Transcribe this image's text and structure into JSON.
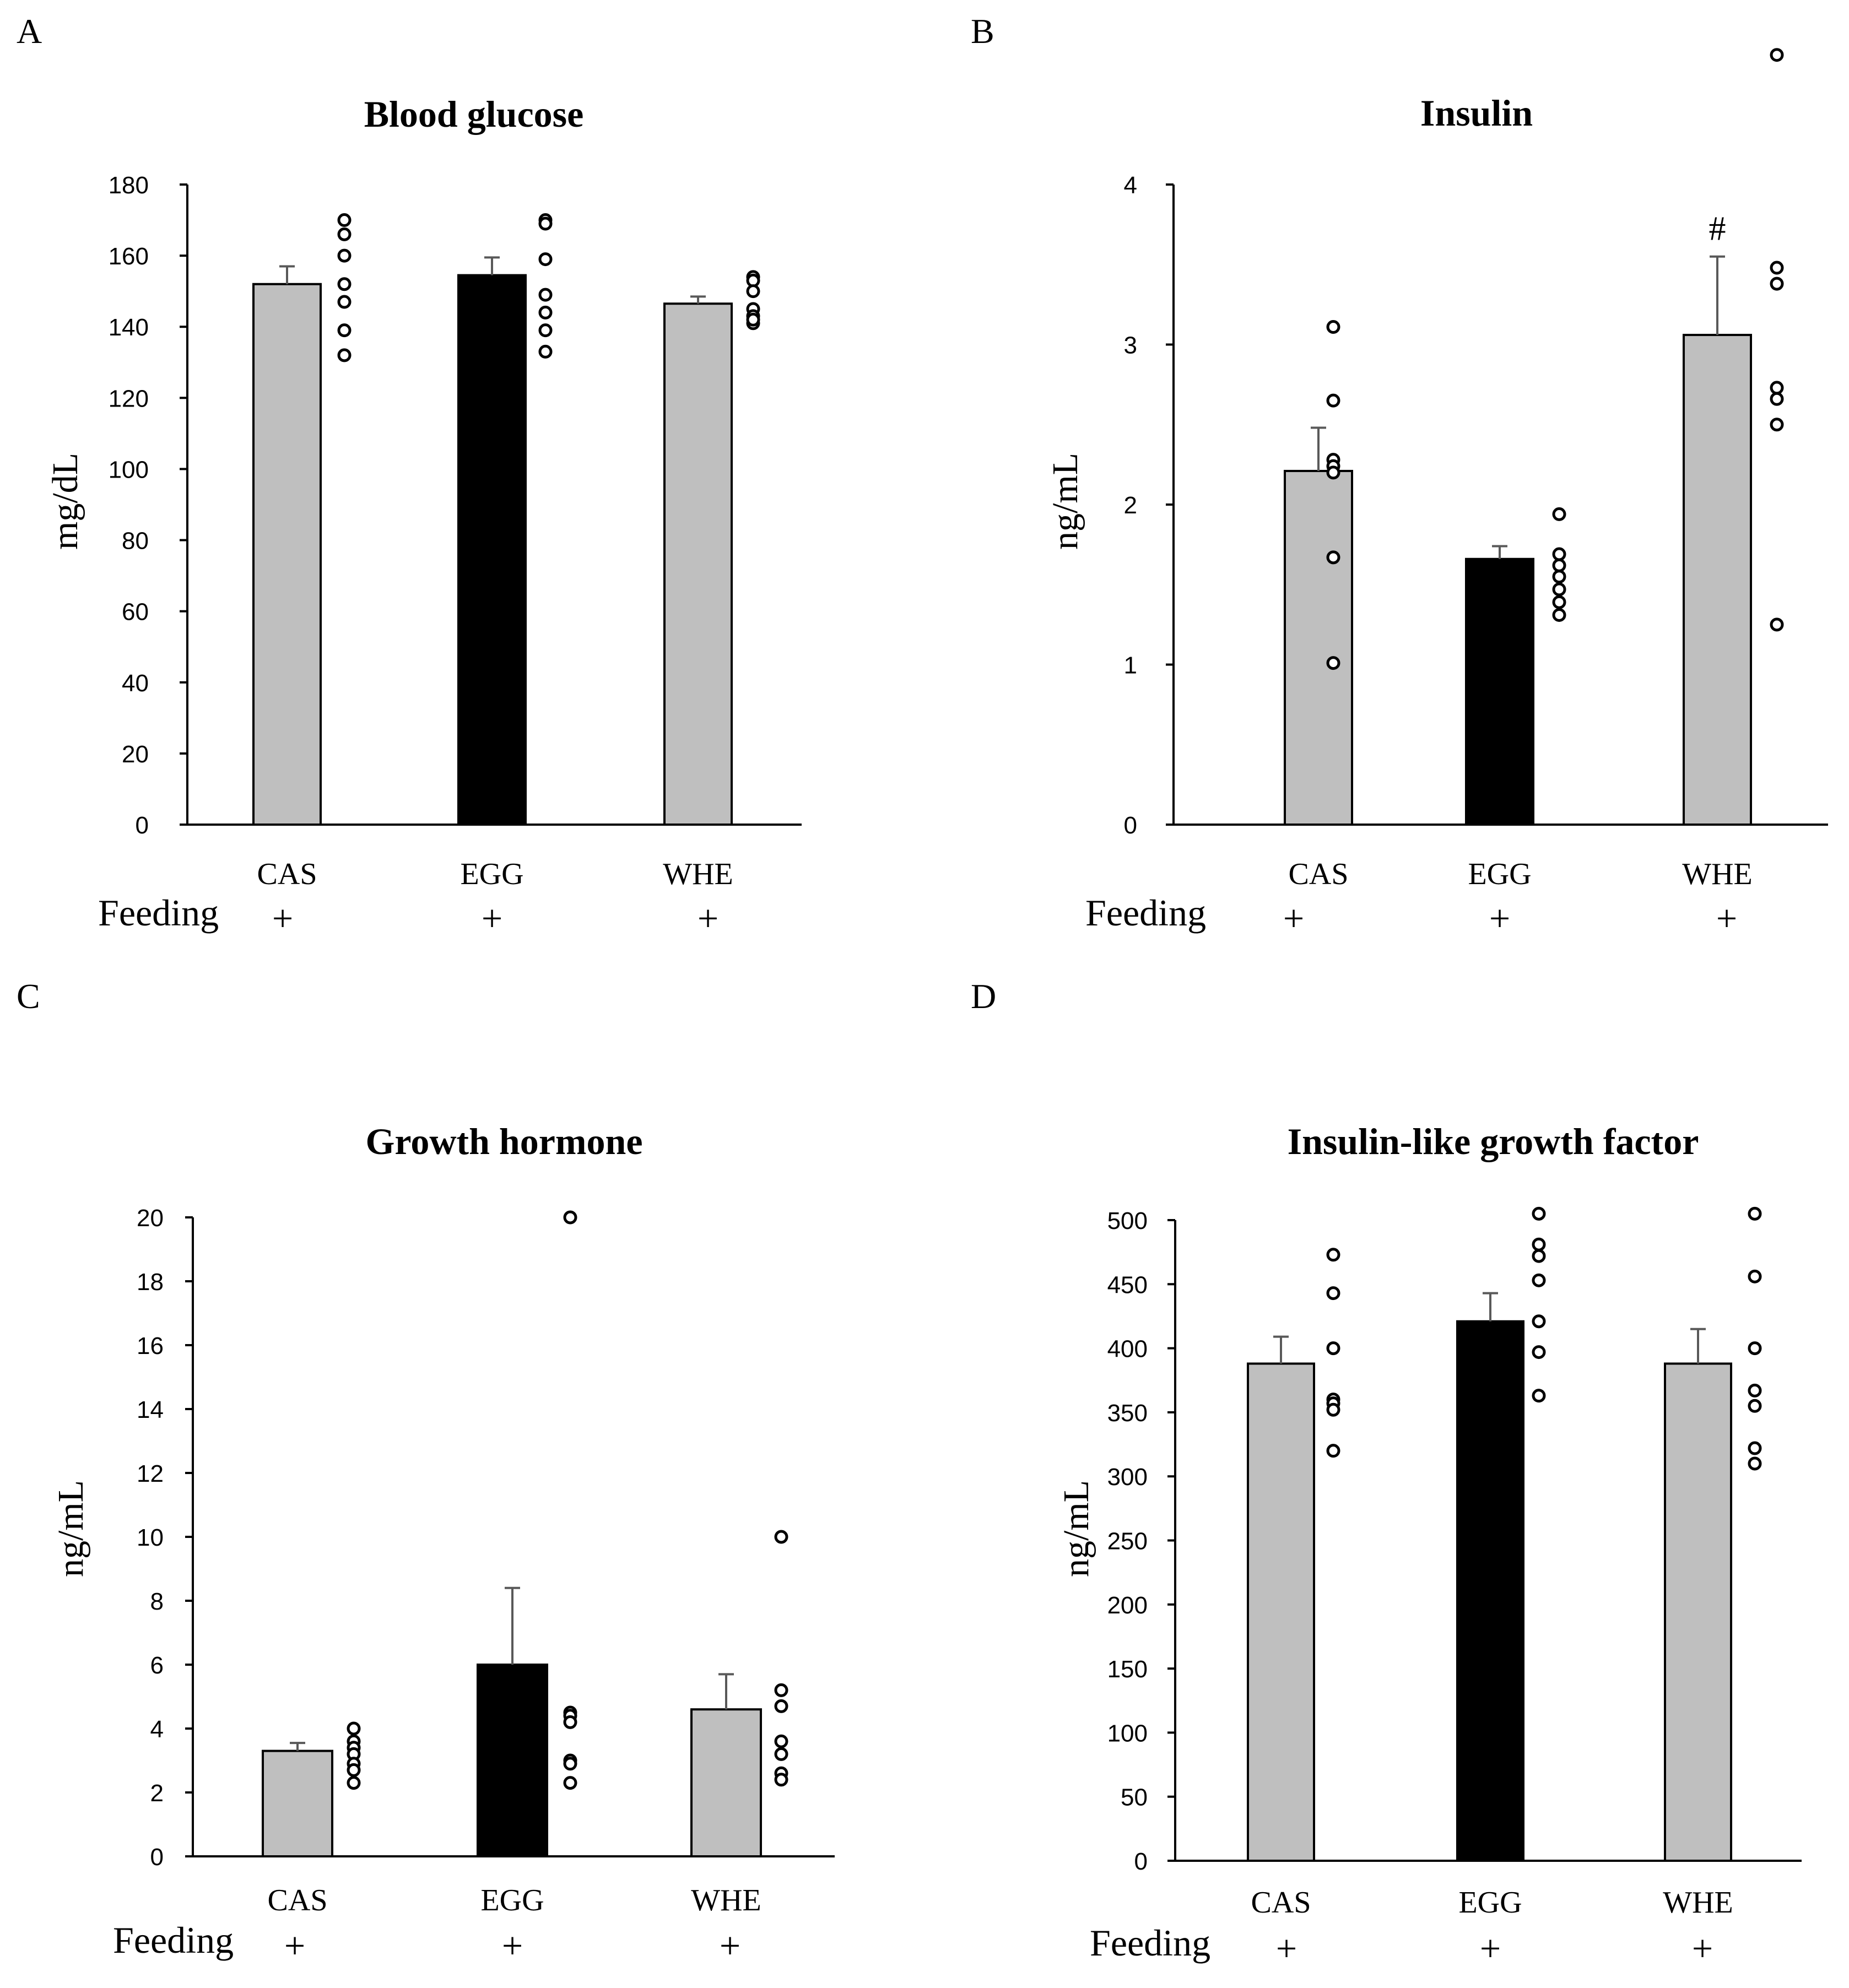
{
  "colors": {
    "gray_bar": "#bfbfbf",
    "black_bar": "#000000",
    "axis": "#000000",
    "error_bar": "#595959"
  },
  "feeding": {
    "label": "Feeding",
    "mark": "+"
  },
  "chart_data": [
    {
      "panel": "A",
      "type": "bar",
      "title": "Blood glucose",
      "ylabel": "mg/dL",
      "ylim": [
        0,
        180
      ],
      "yticks": [
        0,
        20,
        40,
        60,
        80,
        100,
        120,
        140,
        160,
        180
      ],
      "categories": [
        "CAS",
        "EGG",
        "WHE"
      ],
      "values": [
        152,
        154.5,
        146.5
      ],
      "errors": [
        5,
        5,
        2
      ],
      "bar_colors": [
        "#bfbfbf",
        "#000000",
        "#bfbfbf"
      ],
      "points": [
        [
          170,
          166,
          160,
          152,
          147,
          139,
          132
        ],
        [
          170,
          169,
          159,
          149,
          144,
          139,
          133
        ],
        [
          154,
          153,
          150,
          145,
          143,
          141,
          142
        ]
      ],
      "annotations": []
    },
    {
      "panel": "B",
      "type": "bar",
      "title": "Insulin",
      "ylabel": "ng/mL",
      "ylim": [
        0,
        4
      ],
      "yticks": [
        0,
        1,
        2,
        3,
        4
      ],
      "categories": [
        "CAS",
        "EGG",
        "WHE"
      ],
      "values": [
        2.21,
        1.66,
        3.06
      ],
      "errors": [
        0.27,
        0.08,
        0.49
      ],
      "bar_colors": [
        "#bfbfbf",
        "#000000",
        "#bfbfbf"
      ],
      "points": [
        [
          3.11,
          2.65,
          2.28,
          2.24,
          2.2,
          1.67,
          1.01
        ],
        [
          1.94,
          1.69,
          1.62,
          1.55,
          1.47,
          1.39,
          1.31
        ],
        [
          4.81,
          3.48,
          3.38,
          2.73,
          2.66,
          2.5,
          1.25
        ]
      ],
      "annotations": [
        {
          "category": "WHE",
          "text": "#"
        }
      ]
    },
    {
      "panel": "C",
      "type": "bar",
      "title": "Growth hormone",
      "ylabel": "ng/mL",
      "ylim": [
        0,
        20
      ],
      "yticks": [
        0,
        2,
        4,
        6,
        8,
        10,
        12,
        14,
        16,
        18,
        20
      ],
      "categories": [
        "CAS",
        "EGG",
        "WHE"
      ],
      "values": [
        3.3,
        6.0,
        4.6
      ],
      "errors": [
        0.25,
        2.4,
        1.1
      ],
      "bar_colors": [
        "#bfbfbf",
        "#000000",
        "#bfbfbf"
      ],
      "points": [
        [
          4.0,
          3.6,
          3.4,
          3.2,
          2.9,
          2.7,
          2.3
        ],
        [
          20.0,
          4.5,
          4.4,
          4.2,
          3.0,
          2.9,
          2.3
        ],
        [
          10.0,
          5.2,
          4.7,
          3.6,
          3.2,
          2.6,
          2.4
        ]
      ],
      "annotations": []
    },
    {
      "panel": "D",
      "type": "bar",
      "title": "Insulin-like growth factor",
      "ylabel": "ng/mL",
      "ylim": [
        0,
        500
      ],
      "yticks": [
        0,
        50,
        100,
        150,
        200,
        250,
        300,
        350,
        400,
        450,
        500
      ],
      "categories": [
        "CAS",
        "EGG",
        "WHE"
      ],
      "values": [
        388,
        421,
        388
      ],
      "errors": [
        21,
        22,
        27
      ],
      "bar_colors": [
        "#bfbfbf",
        "#000000",
        "#bfbfbf"
      ],
      "points": [
        [
          473,
          443,
          400,
          360,
          357,
          352,
          320
        ],
        [
          505,
          481,
          472,
          453,
          421,
          397,
          363
        ],
        [
          505,
          456,
          400,
          367,
          355,
          322,
          310
        ]
      ],
      "annotations": []
    }
  ]
}
